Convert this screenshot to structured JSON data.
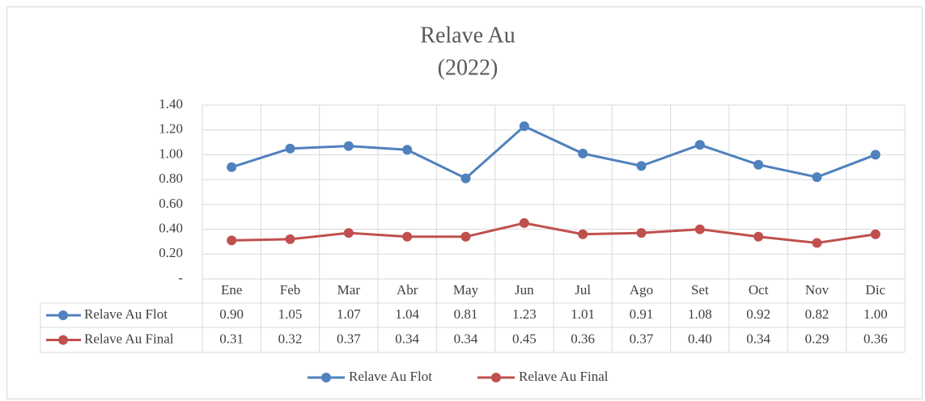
{
  "chart_data": {
    "type": "line",
    "title": "Relave Au",
    "subtitle": "(2022)",
    "categories": [
      "Ene",
      "Feb",
      "Mar",
      "Abr",
      "May",
      "Jun",
      "Jul",
      "Ago",
      "Set",
      "Oct",
      "Nov",
      "Dic"
    ],
    "series": [
      {
        "name": "Relave Au Flot",
        "color": "#4f81bd",
        "values": [
          0.9,
          1.05,
          1.07,
          1.04,
          0.81,
          1.23,
          1.01,
          0.91,
          1.08,
          0.92,
          0.82,
          1.0
        ],
        "value_labels": [
          "0.90",
          "1.05",
          "1.07",
          "1.04",
          "0.81",
          "1.23",
          "1.01",
          "0.91",
          "1.08",
          "0.92",
          "0.82",
          "1.00"
        ]
      },
      {
        "name": "Relave Au Final",
        "color": "#c0504d",
        "values": [
          0.31,
          0.32,
          0.37,
          0.34,
          0.34,
          0.45,
          0.36,
          0.37,
          0.4,
          0.34,
          0.29,
          0.36
        ],
        "value_labels": [
          "0.31",
          "0.32",
          "0.37",
          "0.34",
          "0.34",
          "0.45",
          "0.36",
          "0.37",
          "0.40",
          "0.34",
          "0.29",
          "0.36"
        ]
      }
    ],
    "ylim": [
      0,
      1.4
    ],
    "yticks": [
      {
        "value": 0,
        "label": "-"
      },
      {
        "value": 0.2,
        "label": "0.20"
      },
      {
        "value": 0.4,
        "label": "0.40"
      },
      {
        "value": 0.6,
        "label": "0.60"
      },
      {
        "value": 0.8,
        "label": "0.80"
      },
      {
        "value": 1.0,
        "label": "1.00"
      },
      {
        "value": 1.2,
        "label": "1.20"
      },
      {
        "value": 1.4,
        "label": "1.40"
      }
    ],
    "grid": true,
    "legend": "bottom"
  }
}
